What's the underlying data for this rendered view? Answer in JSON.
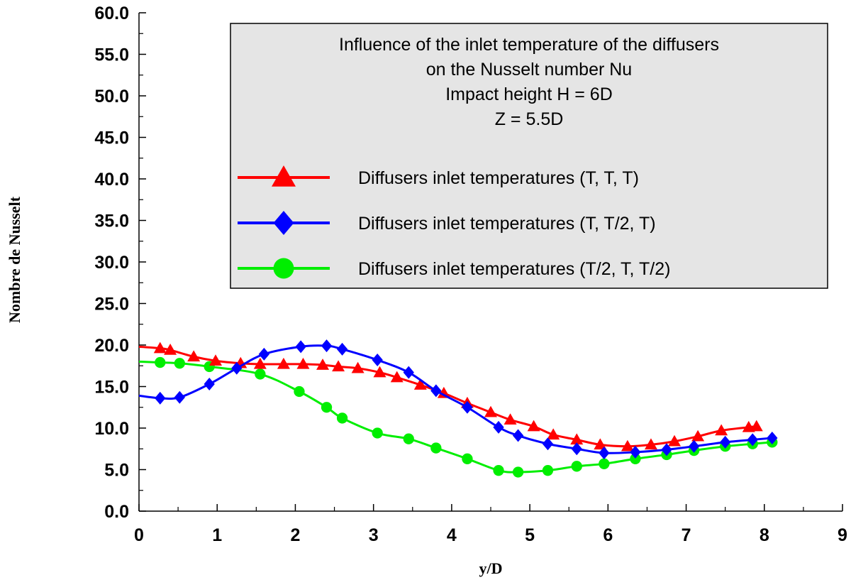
{
  "chart_data": {
    "type": "line",
    "title_lines": [
      "Influence of the inlet temperature of the diffusers",
      "on the Nusselt number Nu",
      "Impact height H = 6D",
      "Z = 5.5D"
    ],
    "xlabel": "y/D",
    "ylabel": "Nombre de Nusselt",
    "xlim": [
      0,
      9
    ],
    "ylim": [
      0,
      60
    ],
    "x_ticks": [
      "0",
      "1",
      "2",
      "3",
      "4",
      "5",
      "6",
      "7",
      "8",
      "9"
    ],
    "y_ticks": [
      "0.0",
      "5.0",
      "10.0",
      "15.0",
      "20.0",
      "25.0",
      "30.0",
      "35.0",
      "40.0",
      "45.0",
      "50.0",
      "55.0",
      "60.0"
    ],
    "grid": false,
    "legend_position": "top-right",
    "series": [
      {
        "name": "Diffusers inlet temperatures (T, T, T)",
        "color": "#ff0000",
        "marker": "triangle",
        "x": [
          0.0,
          0.27,
          0.4,
          0.7,
          0.98,
          1.3,
          1.55,
          1.85,
          2.1,
          2.35,
          2.55,
          2.8,
          3.08,
          3.3,
          3.6,
          3.9,
          4.2,
          4.5,
          4.75,
          5.05,
          5.3,
          5.6,
          5.9,
          6.25,
          6.55,
          6.85,
          7.15,
          7.45,
          7.8,
          7.9
        ],
        "y": [
          19.8,
          19.6,
          19.4,
          18.6,
          18.1,
          17.8,
          17.7,
          17.7,
          17.7,
          17.6,
          17.4,
          17.2,
          16.7,
          16.1,
          15.2,
          14.2,
          13.0,
          11.9,
          11.0,
          10.2,
          9.2,
          8.6,
          8.0,
          7.8,
          8.0,
          8.4,
          9.0,
          9.7,
          10.1,
          10.2
        ]
      },
      {
        "name": "Diffusers inlet temperatures (T, T/2, T)",
        "color": "#0000ff",
        "marker": "diamond",
        "x": [
          0.0,
          0.27,
          0.52,
          0.9,
          1.25,
          1.6,
          2.07,
          2.4,
          2.6,
          3.05,
          3.45,
          3.8,
          4.2,
          4.6,
          4.85,
          5.23,
          5.6,
          5.95,
          6.35,
          6.75,
          7.1,
          7.5,
          7.85,
          8.1
        ],
        "y": [
          13.9,
          13.6,
          13.7,
          15.3,
          17.2,
          18.9,
          19.8,
          19.9,
          19.5,
          18.2,
          16.7,
          14.5,
          12.5,
          10.1,
          9.1,
          8.1,
          7.5,
          7.0,
          7.1,
          7.4,
          7.8,
          8.3,
          8.6,
          8.8
        ]
      },
      {
        "name": "Diffusers inlet temperatures (T/2, T, T/2)",
        "color": "#00ee00",
        "marker": "circle",
        "x": [
          0.0,
          0.27,
          0.52,
          0.9,
          1.55,
          2.05,
          2.4,
          2.6,
          3.05,
          3.45,
          3.8,
          4.2,
          4.6,
          4.85,
          5.23,
          5.6,
          5.95,
          6.35,
          6.75,
          7.1,
          7.5,
          7.85,
          8.1
        ],
        "y": [
          18.0,
          17.9,
          17.8,
          17.4,
          16.5,
          14.4,
          12.5,
          11.2,
          9.4,
          8.7,
          7.6,
          6.3,
          4.9,
          4.7,
          4.9,
          5.4,
          5.7,
          6.3,
          6.8,
          7.3,
          7.8,
          8.1,
          8.3
        ]
      }
    ]
  }
}
